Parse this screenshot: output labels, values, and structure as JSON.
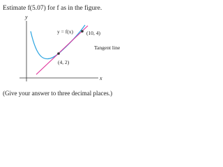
{
  "question": "Estimate f(5.07) for f as in the figure.",
  "figure": {
    "y_axis_label": "y",
    "x_axis_label": "x",
    "curve_label": "y = f(x)",
    "tangent_label": "Tangent line",
    "point_a_label": "(4, 2)",
    "point_b_label": "(10, 4)"
  },
  "footer": "(Give your answer to three decimal places.)"
}
